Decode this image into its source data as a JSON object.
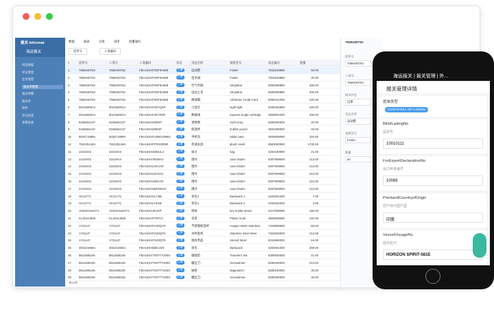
{
  "window": {
    "app_title": "报关 Informat",
    "module": "海运报关",
    "tabs": [
      "数据",
      "报表",
      "分组",
      "排序",
      "批量操作"
    ],
    "filters": [
      "提单号",
      "入境编码"
    ],
    "footer": "共29条"
  },
  "sidebar": [
    "海运数据",
    "单证管理",
    "业务管理",
    "报关单管理",
    "报关明细",
    "报关单",
    "附件",
    "单证检查",
    "查看报表"
  ],
  "table": {
    "headers": [
      "#",
      "提单号",
      "入境号",
      "入境编码",
      "状态",
      "货品名称",
      "规格型号",
      "商品编号",
      "数量"
    ],
    "rows": [
      [
        "1",
        "7569180752",
        "7569180752",
        "FBA15XXF0DF9A598",
        "已审",
        "运动鞋",
        "Finder",
        "7818183980",
        "50.00"
      ],
      [
        "2",
        "7569180752",
        "7569180752",
        "FBA15XXF0DF9A598",
        "已审",
        "连衣裙",
        "Finder",
        "7818183980",
        "30.00"
      ],
      [
        "3",
        "7569180752",
        "7569180752",
        "FBA15XXF0DF9A598",
        "已审",
        "空气炸锅",
        "Strayblue",
        "5600090880",
        "200.00"
      ],
      [
        "4",
        "7569180752",
        "7569180752",
        "FBA15XXF0DF9A598",
        "已审",
        "运动上衣",
        "Strayblue",
        "5600090880",
        "200.00"
      ],
      [
        "5",
        "7569180752",
        "7569180752",
        "FBA15XXF0DF9A598",
        "已审",
        "棒球帽",
        "Arbitrator Credit Card",
        "8305151090",
        "220.00"
      ],
      [
        "6",
        "9014660014",
        "9014660014",
        "FBA15XXF0ZYQSP",
        "已审",
        "小台灯",
        "night light",
        "9405404900",
        "220.00"
      ],
      [
        "7",
        "9014660014",
        "9014660014",
        "FBA15XXF4KT3NR",
        "已审",
        "数据线",
        "express single cartridge",
        "3926901000",
        "200.00"
      ],
      [
        "8",
        "8156662137",
        "8156662137",
        "FBA15XXZ0MXF",
        "已审",
        "宠物窝",
        "Sofa Gray",
        "6306300000",
        "20.00"
      ],
      [
        "9",
        "8156662137",
        "8156662137",
        "FBA15XXZ0MXF",
        "已审",
        "保温杯",
        "bubble pouch",
        "3923290000",
        "40.00"
      ],
      [
        "10",
        "8033719994",
        "8033719994",
        "FBA15XXFLMM13WBX",
        "已审",
        "手机壳",
        "tablet case",
        "3926909090",
        "102.00"
      ],
      [
        "11",
        "7531351494",
        "7531351494",
        "FBA15XXFTRXSRNR",
        "已审",
        "毛绒玩具",
        "plush small",
        "9503000090",
        "1730.00"
      ],
      [
        "12",
        "2101KKS",
        "2101KKS",
        "FBA15XXGBDUL2",
        "已审",
        "袜子",
        "bag",
        "4202190090",
        "21.00"
      ],
      [
        "13",
        "2101KKS",
        "2101KKS",
        "FBA15XX7BS5H4",
        "已审",
        "围巾",
        "case binder",
        "6307909000",
        "213.00"
      ],
      [
        "14",
        "2101KKS",
        "2101KKS",
        "FBA15XXLMCV4F",
        "已审",
        "围巾",
        "case binder",
        "6307909000",
        "213.00"
      ],
      [
        "15",
        "2101KKS",
        "2101KKS",
        "FBA15XXLBY51G",
        "已审",
        "围巾",
        "case binder",
        "6307909000",
        "213.00"
      ],
      [
        "16",
        "2101KKS",
        "2101KKS",
        "FBA15XXLBDVJG",
        "已审",
        "围巾",
        "case binder",
        "6307909000",
        "213.00"
      ],
      [
        "17",
        "2101KKS",
        "2101KKS",
        "FBA15XXDBPNSLR",
        "已审",
        "围巾",
        "case binder",
        "6307909000",
        "213.00"
      ],
      [
        "18",
        "HC2177L",
        "HC2177L",
        "FBA15XXSL745L",
        "已审",
        "背包1",
        "Backpack 1",
        "4202921000",
        "7.00"
      ],
      [
        "19",
        "HC2177L",
        "HC2177L",
        "FBA15XXLYKSB",
        "已审",
        "背包2",
        "Backpack 2",
        "4202921000",
        "3.00"
      ],
      [
        "20",
        "JS302151E4T1",
        "JS302151E4T1",
        "FBA15XXJEXSP",
        "已审",
        "地毯",
        "key holder tinted",
        "4417008090",
        "160.00"
      ],
      [
        "21",
        "KL30114935",
        "KL30114935",
        "FBA15XXFT9TKX",
        "已审",
        "衣架",
        "Plastic hook",
        "3926909090",
        "120.00"
      ],
      [
        "22",
        "1721147",
        "1721147",
        "FBA15XXFGZ0QTK",
        "已审",
        "不锈钢保温杯",
        "Copper Mesh Stainless",
        "7419999900",
        "60.00"
      ],
      [
        "23",
        "1721147",
        "1721147",
        "FBA15XXFGZ0QTK",
        "已审",
        "水杯套装",
        "Stainless Steel Wine",
        "7323930000",
        "213.00"
      ],
      [
        "24",
        "1721147",
        "1721147",
        "FBA15XXFGZ0QTK",
        "已审",
        "厨房用品",
        "Utensil Steel",
        "8215990000",
        "64.00"
      ],
      [
        "25",
        "3021016654",
        "3021016654",
        "FBA15XXBMC3V8",
        "已审",
        "背包",
        "Backpack",
        "4202921000",
        "398.00"
      ],
      [
        "26",
        "8811605345",
        "8811605345",
        "FBA15XXTX5TT7U00X",
        "已审",
        "瑜伽垫",
        "Travelers Set",
        "6305930000",
        "21.00"
      ],
      [
        "27",
        "8811605345",
        "8811605345",
        "FBA15XXTX5TT7U00X",
        "已审",
        "螺丝刀",
        "Screwdriver",
        "8205400000",
        "213.00"
      ],
      [
        "28",
        "8811605345",
        "8811605345",
        "FBA15XXTX5TT7U00X",
        "已审",
        "磁铁",
        "Magnetizer",
        "8505190000",
        "30.00"
      ],
      [
        "29",
        "8811605345",
        "8811605345",
        "FBA15XXTX5TT7U00X",
        "已审",
        "螺丝刀",
        "Screwdriver",
        "8205400000",
        "30.00"
      ]
    ]
  },
  "detail": {
    "title": "7569180752",
    "fields": [
      {
        "label": "提单号",
        "value": "7569180752"
      },
      {
        "label": "入境号",
        "value": "7569180752"
      },
      {
        "label": "报关状态",
        "value": "已审"
      },
      {
        "label": "货品名称",
        "value": "运动鞋"
      },
      {
        "label": "规格型号",
        "value": "Finder"
      },
      {
        "label": "数量",
        "value": "50"
      }
    ]
  },
  "phone": {
    "top_title": "海运报关 | 报关管理 | 外...",
    "page_title": "报关管理详情",
    "type_label": "提单类型",
    "type_value": "OCEAN BILL OF LADING",
    "fields": [
      {
        "label": "BillofLadingNo",
        "hint": "提单号",
        "value": "10010111"
      },
      {
        "label": "ForExportDeclarationNo",
        "hint": "出口申报编号",
        "value": "10086"
      },
      {
        "label": "PointandCountryofOrigin",
        "hint": "原产地与国产国",
        "value": "印度"
      },
      {
        "label": "VesselVoyageNo",
        "hint": "船名航次",
        "value": "HORIZON SPIRIT-581E"
      }
    ]
  }
}
